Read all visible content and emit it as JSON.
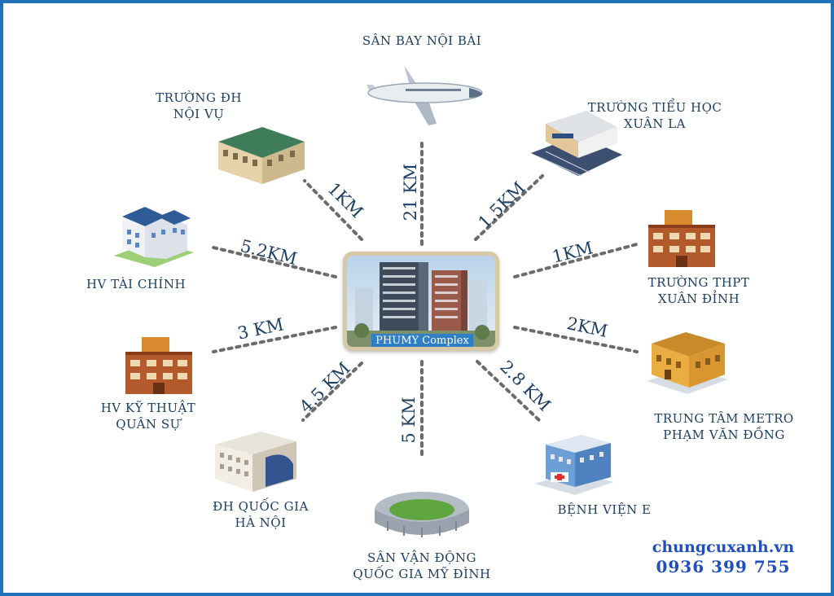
{
  "center": {
    "caption": "PHUMY Complex"
  },
  "destinations": {
    "airport": {
      "lines": [
        "SÂN BAY NỘI BÀI"
      ],
      "distance": "21 KM"
    },
    "noivu": {
      "lines": [
        "TRƯỜNG ĐH",
        "NỘI VỤ"
      ],
      "distance": "1KM"
    },
    "xuanla": {
      "lines": [
        "TRƯỜNG TIỂU HỌC",
        "XUÂN LA"
      ],
      "distance": "1.5KM"
    },
    "taichinh": {
      "lines": [
        "HV TÀI CHÍNH"
      ],
      "distance": "5.2KM"
    },
    "xuandinh": {
      "lines": [
        "TRƯỜNG THPT",
        "XUÂN ĐỈNH"
      ],
      "distance": "1KM"
    },
    "kythuat": {
      "lines": [
        "HV KỸ THUẬT",
        "QUÂN SỰ"
      ],
      "distance": "3 KM"
    },
    "metro": {
      "lines": [
        "TRUNG TÂM METRO",
        "PHẠM VĂN ĐỒNG"
      ],
      "distance": "2KM"
    },
    "qghn": {
      "lines": [
        "ĐH QUỐC GIA",
        "HÀ NỘI"
      ],
      "distance": "4.5 KM"
    },
    "stadium": {
      "lines": [
        "SÂN VẬN ĐỘNG",
        "QUỐC GIA MỸ ĐÌNH"
      ],
      "distance": "5 KM"
    },
    "hospital": {
      "lines": [
        "BỆNH VIỆN E"
      ],
      "distance": "2.8 KM"
    }
  },
  "brand": {
    "website": "chungcuxanh.vn",
    "phone": "0936 399 755"
  },
  "icons": {
    "airport": "airplane-icon",
    "noivu": "university-building-icon",
    "xuanla": "school-building-icon",
    "taichinh": "academy-building-icon",
    "xuandinh": "highschool-building-icon",
    "kythuat": "military-academy-building-icon",
    "metro": "mall-building-icon",
    "qghn": "national-university-building-icon",
    "stadium": "stadium-icon",
    "hospital": "hospital-icon"
  },
  "colors": {
    "frame": "#1f72b8",
    "label": "#1d3f63",
    "brand": "#1f4fbf",
    "dots": "#6b6b6b"
  }
}
